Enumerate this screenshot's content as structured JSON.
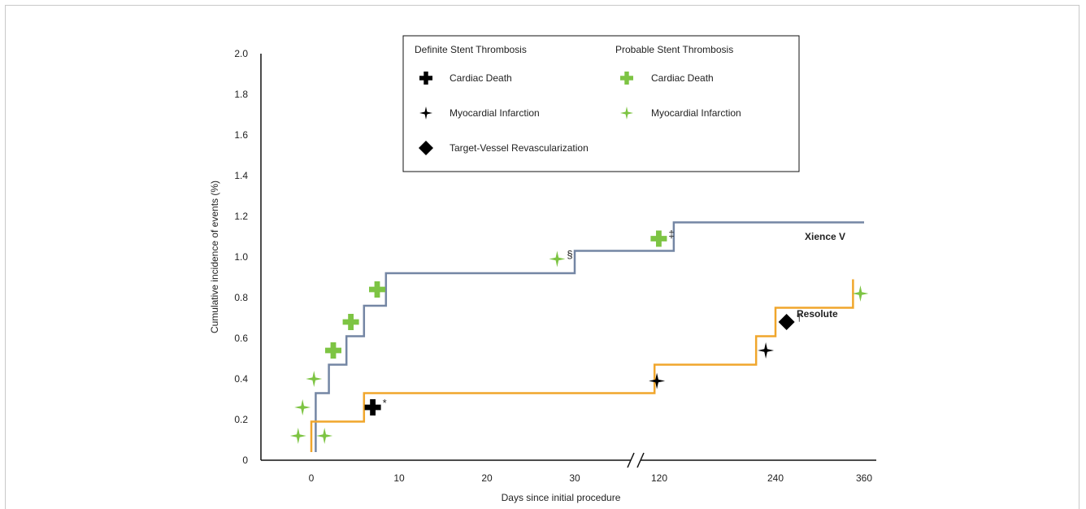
{
  "chart_data": {
    "type": "line",
    "ylabel": "Cumulative incidence of events (%)",
    "xlabel": "Days since initial procedure",
    "ylim": [
      0,
      2.0
    ],
    "y_ticks": [
      "0",
      "0.2",
      "0.4",
      "0.6",
      "0.8",
      "1.0",
      "1.2",
      "1.4",
      "1.6",
      "1.8",
      "2.0"
    ],
    "x_ticks": [
      {
        "label": "0",
        "value": 0
      },
      {
        "label": "10",
        "value": 10
      },
      {
        "label": "20",
        "value": 20
      },
      {
        "label": "30",
        "value": 30
      },
      {
        "label": "120",
        "value": 120
      },
      {
        "label": "240",
        "value": 240
      },
      {
        "label": "360",
        "value": 360
      }
    ],
    "x_axis_break": "between 30 and 120 days",
    "legend": {
      "placement": "top-center",
      "groups": [
        {
          "heading": "Definite Stent Thrombosis",
          "color": "#000000",
          "entries": [
            {
              "label": "Cardiac Death",
              "marker": "plus-icon"
            },
            {
              "label": "Myocardial Infarction",
              "marker": "star-icon"
            },
            {
              "label": "Target-Vessel Revascularization",
              "marker": "diamond-icon"
            }
          ]
        },
        {
          "heading": "Probable Stent Thrombosis",
          "color": "#7dc443",
          "entries": [
            {
              "label": "Cardiac Death",
              "marker": "plus-icon"
            },
            {
              "label": "Myocardial Infarction",
              "marker": "star-icon"
            }
          ]
        }
      ]
    },
    "series": [
      {
        "name": "Xience V",
        "color": "#7486a4",
        "steps": [
          {
            "x": 0.5,
            "y": 0.04
          },
          {
            "x": 0.5,
            "y": 0.33
          },
          {
            "x": 2,
            "y": 0.47
          },
          {
            "x": 4,
            "y": 0.61
          },
          {
            "x": 6,
            "y": 0.76
          },
          {
            "x": 8.5,
            "y": 0.92
          },
          {
            "x": 30,
            "y": 1.03
          },
          {
            "x": 135,
            "y": 1.17
          },
          {
            "x": 360,
            "y": 1.17
          }
        ]
      },
      {
        "name": "Resolute",
        "color": "#f0a62c",
        "steps": [
          {
            "x": 0,
            "y": 0.04
          },
          {
            "x": 0,
            "y": 0.19
          },
          {
            "x": 6,
            "y": 0.33
          },
          {
            "x": 100,
            "y": 0.47
          },
          {
            "x": 220,
            "y": 0.61
          },
          {
            "x": 240,
            "y": 0.75
          },
          {
            "x": 345,
            "y": 0.89
          }
        ]
      }
    ],
    "events": [
      {
        "x": -1.5,
        "y": 0.12,
        "marker": "star-icon",
        "color": "#7dc443"
      },
      {
        "x": -1,
        "y": 0.26,
        "marker": "star-icon",
        "color": "#7dc443"
      },
      {
        "x": 0.3,
        "y": 0.4,
        "marker": "star-icon",
        "color": "#7dc443"
      },
      {
        "x": 1.5,
        "y": 0.12,
        "marker": "star-icon",
        "color": "#7dc443"
      },
      {
        "x": 2.5,
        "y": 0.54,
        "marker": "plus-icon",
        "color": "#7dc443"
      },
      {
        "x": 4.5,
        "y": 0.68,
        "marker": "plus-icon",
        "color": "#7dc443"
      },
      {
        "x": 7.5,
        "y": 0.84,
        "marker": "plus-icon",
        "color": "#7dc443"
      },
      {
        "x": 7,
        "y": 0.26,
        "marker": "plus-icon",
        "color": "#000000",
        "note": "*"
      },
      {
        "x": 28,
        "y": 0.99,
        "marker": "star-icon",
        "color": "#7dc443",
        "note": "§"
      },
      {
        "x": 118,
        "y": 1.09,
        "marker": "plus-icon",
        "color": "#7dc443",
        "note": "‡"
      },
      {
        "x": 110,
        "y": 0.39,
        "marker": "star-icon",
        "color": "#000000"
      },
      {
        "x": 230,
        "y": 0.54,
        "marker": "star-icon",
        "color": "#000000"
      },
      {
        "x": 255,
        "y": 0.68,
        "marker": "diamond-icon",
        "color": "#000000",
        "note": "†"
      },
      {
        "x": 355,
        "y": 0.82,
        "marker": "star-icon",
        "color": "#7dc443"
      }
    ]
  }
}
